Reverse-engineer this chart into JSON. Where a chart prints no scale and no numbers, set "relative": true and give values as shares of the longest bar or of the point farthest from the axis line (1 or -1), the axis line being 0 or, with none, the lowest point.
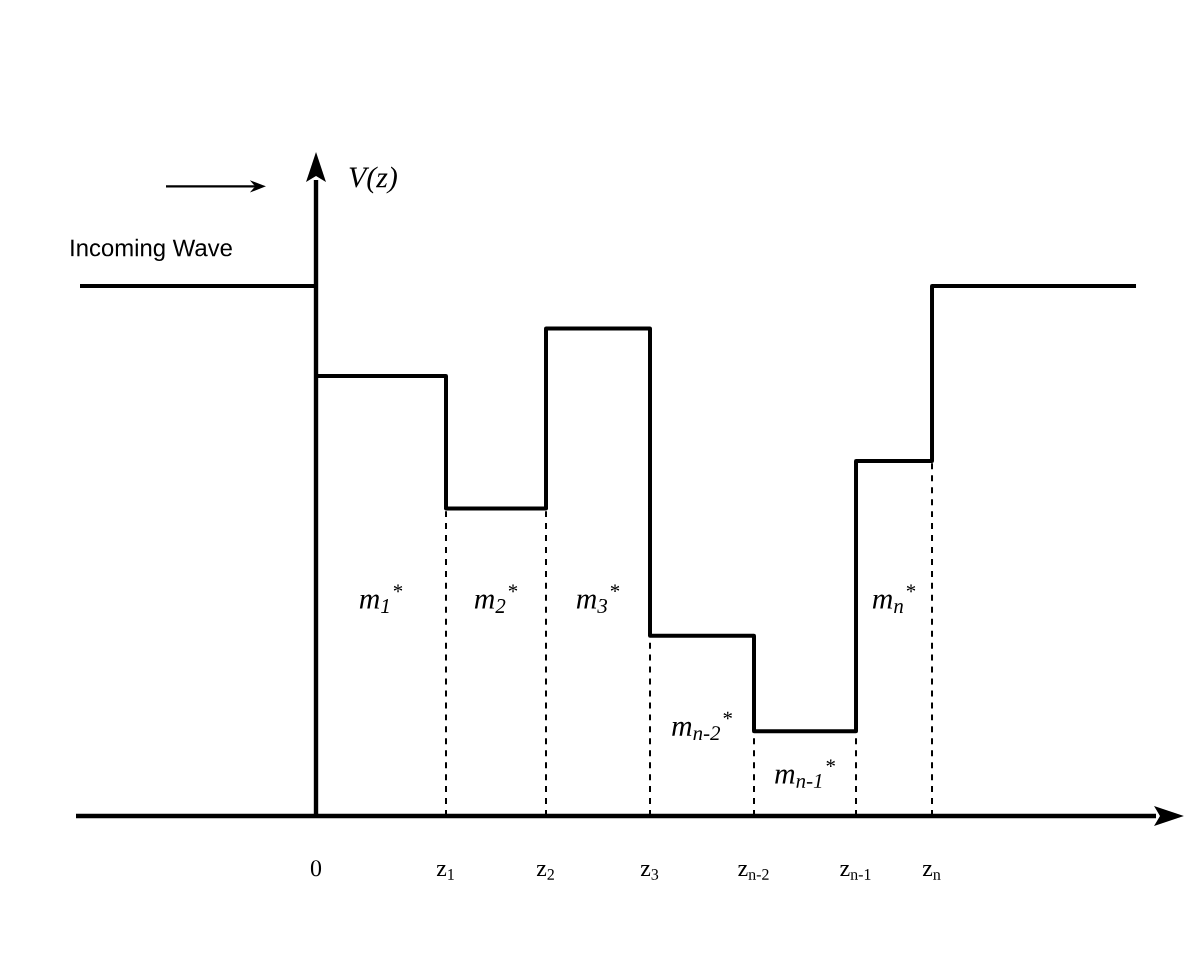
{
  "chart_data": {
    "type": "step",
    "relative": true,
    "ylabel": "V(z)",
    "x": [
      -2.36,
      0,
      1.3,
      2.3,
      3.34,
      4.38,
      5.4,
      6.16,
      8.2
    ],
    "values": [
      1,
      0.83,
      0.58,
      0.92,
      0.34,
      0.16,
      0.67,
      1,
      1
    ],
    "color": "#000000",
    "xlim": [
      -2.4,
      8.4
    ],
    "xticks": [
      0,
      {
        "value": 1.3,
        "label": "z$_{1}$"
      },
      {
        "value": 2.3,
        "label": "z$_{2}$"
      },
      {
        "value": 3.34,
        "label": "z$_{3}$"
      },
      {
        "value": 4.38,
        "label": "z$_{n-2}$"
      },
      {
        "value": 5.4,
        "label": "z$_{n-1}$"
      },
      {
        "value": 6.16,
        "label": "z$_{n}$"
      }
    ],
    "ref_lines": [
      {
        "axis": "x",
        "value": 1.3,
        "line_style": "dashed"
      },
      {
        "axis": "x",
        "value": 2.3,
        "line_style": "dashed"
      },
      {
        "axis": "x",
        "value": 3.34,
        "line_style": "dashed"
      },
      {
        "axis": "x",
        "value": 4.38,
        "line_style": "dashed"
      },
      {
        "axis": "x",
        "value": 5.4,
        "line_style": "dashed"
      },
      {
        "axis": "x",
        "value": 6.16,
        "line_style": "dashed"
      }
    ],
    "annotations": [
      "Incoming Wave",
      "m$_{1}$$^{*}$",
      "m$_{2}$$^{*}$",
      "m$_{3}$$^{*}$",
      "m$_{n-2}$$^{*}$",
      "m$_{n-1}$$^{*}$",
      "m$_{n}$$^{*}$"
    ]
  }
}
